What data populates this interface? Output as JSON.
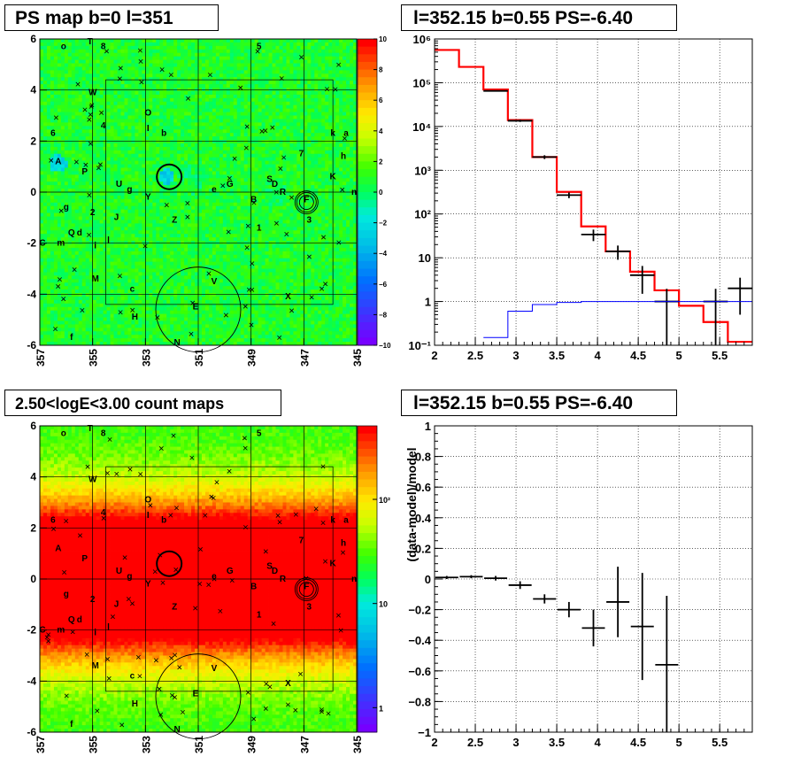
{
  "panels": {
    "ps_map": {
      "title": "PS map b=0 l=351"
    },
    "spectrum": {
      "title": "l=352.15 b=0.55 PS=-6.40"
    },
    "count_map": {
      "title": "2.50<logE<3.00 count maps"
    },
    "residual": {
      "title": "l=352.15 b=0.55 PS=-6.40"
    }
  },
  "chart_data": [
    {
      "type": "heatmap",
      "title": "PS map b=0 l=351",
      "xlabel": "",
      "ylabel": "",
      "x_ticks": [
        "357",
        "355",
        "353",
        "351",
        "349",
        "347",
        "345"
      ],
      "y_ticks": [
        "6",
        "4",
        "2",
        "0",
        "-2",
        "-4",
        "-6"
      ],
      "xlim": [
        357,
        345
      ],
      "ylim": [
        -6,
        6
      ],
      "colorbar": {
        "range": [
          -10,
          10
        ],
        "ticks": [
          "10",
          "8",
          "6",
          "4",
          "2",
          "0",
          "−2",
          "−4",
          "−6",
          "−8",
          "−10"
        ],
        "scale": "linear"
      },
      "grid": true,
      "source_labels": [
        {
          "t": "o",
          "l": 356.1,
          "b": 5.6
        },
        {
          "t": "T",
          "l": 355.1,
          "b": 5.8
        },
        {
          "t": "8",
          "l": 354.6,
          "b": 5.6
        },
        {
          "t": "5",
          "l": 348.7,
          "b": 5.6
        },
        {
          "t": "W",
          "l": 355.0,
          "b": 3.8
        },
        {
          "t": "O",
          "l": 352.9,
          "b": 3.0
        },
        {
          "t": "4",
          "l": 354.6,
          "b": 2.5
        },
        {
          "t": "I",
          "l": 352.9,
          "b": 2.4
        },
        {
          "t": "b",
          "l": 352.3,
          "b": 2.2
        },
        {
          "t": "6",
          "l": 356.5,
          "b": 2.2
        },
        {
          "t": "k",
          "l": 345.9,
          "b": 2.2
        },
        {
          "t": "a",
          "l": 345.4,
          "b": 2.2
        },
        {
          "t": "7",
          "l": 347.1,
          "b": 1.4
        },
        {
          "t": "h",
          "l": 345.5,
          "b": 1.3
        },
        {
          "t": "A",
          "l": 356.3,
          "b": 1.1
        },
        {
          "t": "P",
          "l": 355.3,
          "b": 0.7
        },
        {
          "t": "K",
          "l": 345.9,
          "b": 0.5
        },
        {
          "t": "S",
          "l": 348.3,
          "b": 0.4
        },
        {
          "t": "D",
          "l": 348.1,
          "b": 0.2
        },
        {
          "t": "G",
          "l": 349.8,
          "b": 0.2
        },
        {
          "t": "U",
          "l": 354.0,
          "b": 0.2
        },
        {
          "t": "g",
          "l": 353.6,
          "b": 0.0
        },
        {
          "t": "e",
          "l": 350.4,
          "b": 0.0
        },
        {
          "t": "R",
          "l": 347.8,
          "b": -0.1
        },
        {
          "t": "n",
          "l": 345.1,
          "b": -0.1
        },
        {
          "t": "Y",
          "l": 352.9,
          "b": -0.3
        },
        {
          "t": "B",
          "l": 348.9,
          "b": -0.4
        },
        {
          "t": "F",
          "l": 346.9,
          "b": -0.4
        },
        {
          "t": "g",
          "l": 356.0,
          "b": -0.7
        },
        {
          "t": "2",
          "l": 355.0,
          "b": -0.9
        },
        {
          "t": "J",
          "l": 354.1,
          "b": -1.1
        },
        {
          "t": "Z",
          "l": 351.9,
          "b": -1.2
        },
        {
          "t": "3",
          "l": 346.8,
          "b": -1.2
        },
        {
          "t": "1",
          "l": 348.7,
          "b": -1.5
        },
        {
          "t": "Q",
          "l": 355.8,
          "b": -1.7
        },
        {
          "t": "d",
          "l": 355.5,
          "b": -1.7
        },
        {
          "t": "C",
          "l": 356.9,
          "b": -2.1
        },
        {
          "t": "m",
          "l": 356.2,
          "b": -2.1
        },
        {
          "t": "l",
          "l": 354.4,
          "b": -2.0
        },
        {
          "t": "i",
          "l": 354.9,
          "b": -2.2
        },
        {
          "t": "M",
          "l": 354.9,
          "b": -3.5
        },
        {
          "t": "V",
          "l": 350.4,
          "b": -3.6
        },
        {
          "t": "c",
          "l": 353.5,
          "b": -3.9
        },
        {
          "t": "X",
          "l": 347.6,
          "b": -4.2
        },
        {
          "t": "H",
          "l": 353.4,
          "b": -5.0
        },
        {
          "t": "E",
          "l": 351.1,
          "b": -4.6
        },
        {
          "t": "f",
          "l": 355.8,
          "b": -5.8
        },
        {
          "t": "N",
          "l": 351.8,
          "b": -6.0
        }
      ]
    },
    {
      "type": "line",
      "title": "l=352.15 b=0.55 PS=-6.40",
      "xlabel": "",
      "ylabel": "",
      "xlim": [
        2,
        5.9
      ],
      "ylim": [
        0.1,
        1000000
      ],
      "y_scale": "log",
      "x_ticks": [
        "2",
        "2.5",
        "3",
        "3.5",
        "4",
        "4.5",
        "5",
        "5.5"
      ],
      "y_ticks": [
        "10⁻¹",
        "1",
        "10",
        "10²",
        "10³",
        "10⁴",
        "10⁵",
        "10⁶"
      ],
      "grid": true,
      "bin_edges": [
        2.0,
        2.3,
        2.6,
        2.9,
        3.2,
        3.5,
        3.8,
        4.1,
        4.4,
        4.7,
        5.0,
        5.3,
        5.6,
        5.9
      ],
      "series": [
        {
          "color": "#ff0000",
          "values": [
            560000,
            230000,
            70000,
            14000,
            2000,
            320,
            52,
            14,
            4.8,
            1.8,
            0.8,
            0.34,
            0.12
          ]
        },
        {
          "color": "#000000",
          "values": [
            null,
            null,
            65000,
            13500,
            2000,
            270,
            34,
            14,
            4.0,
            1.0,
            null,
            1.0,
            2.0
          ],
          "errors": [
            null,
            null,
            2000,
            800,
            200,
            40,
            10,
            5,
            2.5,
            0.95,
            null,
            0.95,
            1.5
          ]
        },
        {
          "color": "#0000ff",
          "values": [
            null,
            null,
            0.15,
            0.6,
            0.85,
            0.95,
            1.0,
            1.0,
            1.0,
            1.0,
            1.0,
            1.0,
            1.0
          ]
        }
      ]
    },
    {
      "type": "heatmap",
      "title": "2.50<logE<3.00 count maps",
      "xlabel": "",
      "ylabel": "",
      "x_ticks": [
        "357",
        "355",
        "353",
        "351",
        "349",
        "347",
        "345"
      ],
      "y_ticks": [
        "6",
        "4",
        "2",
        "0",
        "-2",
        "-4",
        "-6"
      ],
      "xlim": [
        357,
        345
      ],
      "ylim": [
        -6,
        6
      ],
      "colorbar": {
        "scale": "log",
        "ticks": [
          "10²",
          "10",
          "1"
        ]
      },
      "grid": true
    },
    {
      "type": "line",
      "title": "l=352.15 b=0.55 PS=-6.40",
      "xlabel": "",
      "ylabel": "(data-model)/model",
      "xlim": [
        2,
        5.9
      ],
      "ylim": [
        -1,
        1
      ],
      "x_ticks": [
        "2",
        "2.5",
        "3",
        "3.5",
        "4",
        "4.5",
        "5",
        "5.5"
      ],
      "y_ticks": [
        "1",
        "0.8",
        "0.6",
        "0.4",
        "0.2",
        "0",
        "−0.2",
        "−0.4",
        "−0.6",
        "−0.8",
        "−1"
      ],
      "grid": true,
      "points": [
        {
          "x": 2.15,
          "y": 0.01,
          "err": 0.01
        },
        {
          "x": 2.45,
          "y": 0.015,
          "err": 0.01
        },
        {
          "x": 2.75,
          "y": 0.005,
          "err": 0.015
        },
        {
          "x": 3.05,
          "y": -0.04,
          "err": 0.025
        },
        {
          "x": 3.35,
          "y": -0.13,
          "err": 0.03
        },
        {
          "x": 3.65,
          "y": -0.2,
          "err": 0.05
        },
        {
          "x": 3.95,
          "y": -0.32,
          "err": 0.12
        },
        {
          "x": 4.25,
          "y": -0.15,
          "err": 0.23
        },
        {
          "x": 4.55,
          "y": -0.31,
          "err": 0.35
        },
        {
          "x": 4.85,
          "y": -0.56,
          "err": 0.45
        }
      ]
    }
  ]
}
